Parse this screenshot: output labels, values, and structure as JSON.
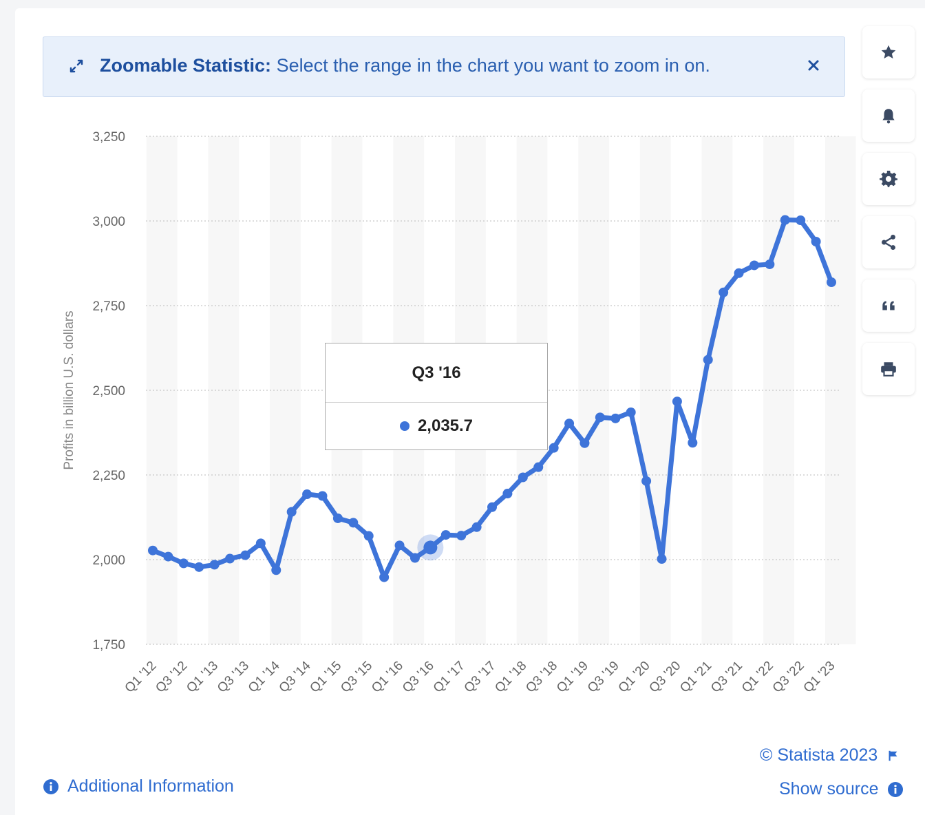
{
  "banner": {
    "title": "Zoomable Statistic:",
    "message": "Select the range in the chart you want to zoom in on."
  },
  "toolbar": {
    "items": [
      "star-icon",
      "bell-icon",
      "gear-icon",
      "share-icon",
      "quote-icon",
      "print-icon"
    ]
  },
  "tooltip": {
    "label": "Q3 '16",
    "value": "2,035.7"
  },
  "footer": {
    "copyright": "© Statista 2023",
    "show_source": "Show source",
    "additional_info": "Additional Information"
  },
  "colors": {
    "line": "#3e74d9",
    "accent": "#2f6cd0",
    "banner_bg": "#e8f0fb"
  },
  "chart_data": {
    "type": "line",
    "title": "",
    "xlabel": "",
    "ylabel": "Profits in billion U.S. dollars",
    "ylim": [
      1750,
      3250
    ],
    "yticks": [
      1750,
      2000,
      2250,
      2500,
      2750,
      3000,
      3250
    ],
    "ytick_labels": [
      "1,750",
      "2,000",
      "2,250",
      "2,500",
      "2,750",
      "3,000",
      "3,250"
    ],
    "grid": true,
    "categories": [
      "Q1 '12",
      "Q2 '12",
      "Q3 '12",
      "Q4 '12",
      "Q1 '13",
      "Q2 '13",
      "Q3 '13",
      "Q4 '13",
      "Q1 '14",
      "Q2 '14",
      "Q3 '14",
      "Q4 '14",
      "Q1 '15",
      "Q2 '15",
      "Q3 '15",
      "Q4 '15",
      "Q1 '16",
      "Q2 '16",
      "Q3 '16",
      "Q4 '16",
      "Q1 '17",
      "Q2 '17",
      "Q3 '17",
      "Q4 '17",
      "Q1 '18",
      "Q2 '18",
      "Q3 '18",
      "Q4 '18",
      "Q1 '19",
      "Q2 '19",
      "Q3 '19",
      "Q4 '19",
      "Q1 '20",
      "Q2 '20",
      "Q3 '20",
      "Q4 '20",
      "Q1 '21",
      "Q2 '21",
      "Q3 '21",
      "Q4 '21",
      "Q1 '22",
      "Q2 '22",
      "Q3 '22",
      "Q4 '22",
      "Q1 '23"
    ],
    "xtick_labels": [
      "Q1 '12",
      "Q3 '12",
      "Q1 '13",
      "Q3 '13",
      "Q1 '14",
      "Q3 '14",
      "Q1 '15",
      "Q3 '15",
      "Q1 '16",
      "Q3 '16",
      "Q1 '17",
      "Q3 '17",
      "Q1 '18",
      "Q3 '18",
      "Q1 '19",
      "Q3 '19",
      "Q1 '20",
      "Q3 '20",
      "Q1 '21",
      "Q3 '21",
      "Q1 '22",
      "Q3 '22",
      "Q1 '23"
    ],
    "series": [
      {
        "values": [
          2027,
          2009,
          1989,
          1978,
          1985,
          2003,
          2013,
          2048,
          1969,
          2141,
          2193,
          2188,
          2122,
          2109,
          2070,
          1948,
          2042,
          2005,
          2035.7,
          2073,
          2071,
          2096,
          2155,
          2195,
          2243,
          2273,
          2330,
          2402,
          2344,
          2420,
          2417,
          2435,
          2232,
          2002,
          2467,
          2345,
          2590,
          2789,
          2846,
          2869,
          2872,
          3003,
          3002,
          2939,
          2819
        ]
      }
    ],
    "highlight_index": 18
  }
}
